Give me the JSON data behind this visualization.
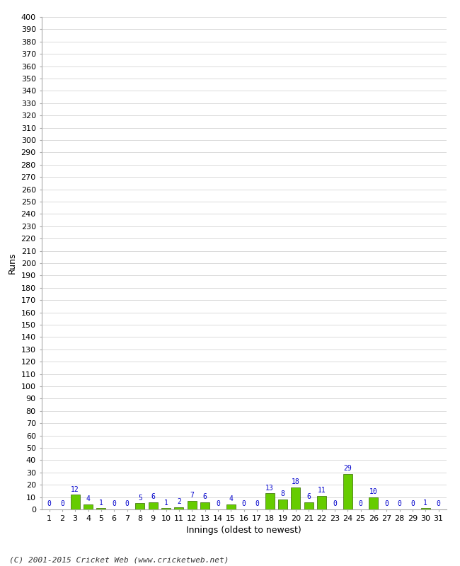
{
  "xlabel": "Innings (oldest to newest)",
  "ylabel": "Runs",
  "footer": "(C) 2001-2015 Cricket Web (www.cricketweb.net)",
  "values": [
    0,
    0,
    12,
    4,
    1,
    0,
    0,
    5,
    6,
    1,
    2,
    7,
    6,
    0,
    4,
    0,
    0,
    13,
    8,
    18,
    6,
    11,
    0,
    29,
    0,
    10,
    0,
    0,
    0,
    1,
    0
  ],
  "innings": [
    1,
    2,
    3,
    4,
    5,
    6,
    7,
    8,
    9,
    10,
    11,
    12,
    13,
    14,
    15,
    16,
    17,
    18,
    19,
    20,
    21,
    22,
    23,
    24,
    25,
    26,
    27,
    28,
    29,
    30,
    31
  ],
  "bar_color": "#66cc00",
  "bar_edge_color": "#336600",
  "label_color": "#0000cc",
  "ylim": [
    0,
    400
  ],
  "background_color": "#ffffff",
  "grid_color": "#cccccc",
  "axis_fontsize": 8,
  "label_fontsize": 7,
  "footer_fontsize": 8
}
